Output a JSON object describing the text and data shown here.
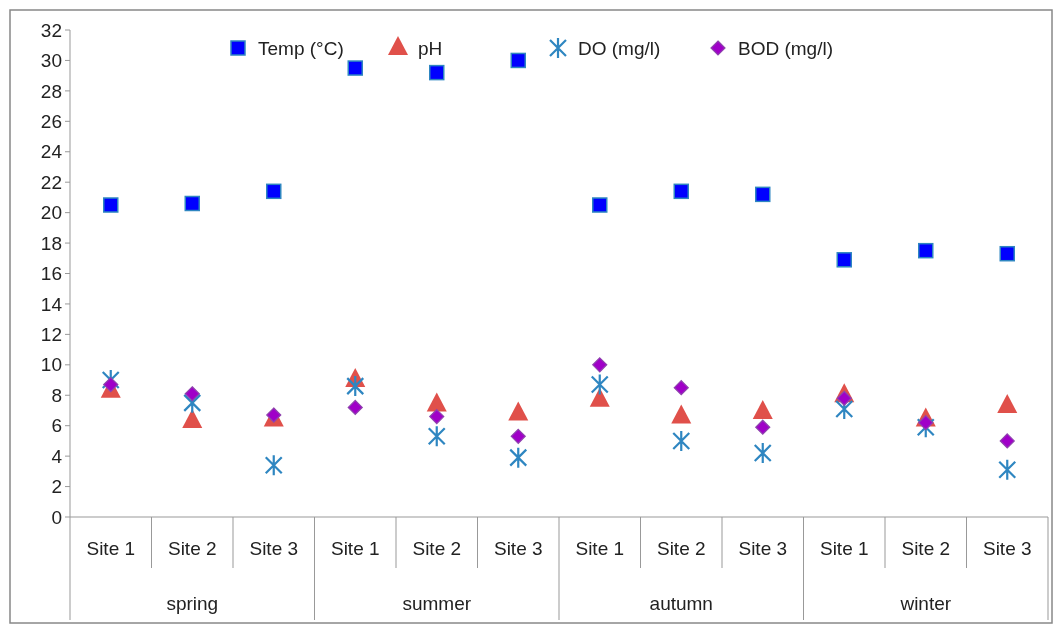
{
  "chart_data": {
    "type": "scatter",
    "categories": [
      "Site 1",
      "Site 2",
      "Site 3",
      "Site 1",
      "Site 2",
      "Site 3",
      "Site 1",
      "Site 2",
      "Site 3",
      "Site 1",
      "Site 2",
      "Site 3"
    ],
    "annotations": [
      "spring",
      "summer",
      "autumn",
      "winter"
    ],
    "series": [
      {
        "name": "Temp (°C)",
        "color": "#0000ff",
        "marker": "square",
        "values": [
          20.5,
          20.6,
          21.4,
          29.5,
          29.2,
          30.0,
          20.5,
          21.4,
          21.2,
          16.9,
          17.5,
          17.3
        ]
      },
      {
        "name": "pH",
        "color": "#e0504a",
        "marker": "triangle",
        "values": [
          8.3,
          6.3,
          6.4,
          9.0,
          7.4,
          6.8,
          7.7,
          6.6,
          6.9,
          8.0,
          6.4,
          7.3
        ]
      },
      {
        "name": "DO (mg/l)",
        "color": "#2e86c1",
        "marker": "cross",
        "values": [
          9.0,
          7.5,
          3.4,
          8.6,
          5.3,
          3.9,
          8.7,
          5.0,
          4.2,
          7.1,
          5.9,
          3.1
        ]
      },
      {
        "name": "BOD (mg/l)",
        "color": "#a000c8",
        "marker": "diamond",
        "values": [
          8.7,
          8.1,
          6.7,
          7.2,
          6.6,
          5.3,
          10.0,
          8.5,
          5.9,
          7.8,
          6.2,
          5.0
        ]
      }
    ],
    "ylim": [
      0,
      32
    ],
    "yticks": [
      0,
      2,
      4,
      6,
      8,
      10,
      12,
      14,
      16,
      18,
      20,
      22,
      24,
      26,
      28,
      30,
      32
    ],
    "legend": "top",
    "grid": false
  }
}
